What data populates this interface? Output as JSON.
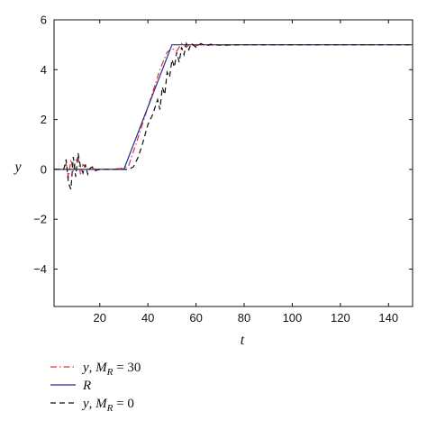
{
  "chart_data": {
    "type": "line",
    "title": "",
    "xlabel": "t",
    "ylabel": "y",
    "xlim": [
      1,
      150
    ],
    "ylim": [
      -5.5,
      6
    ],
    "xticks": [
      20,
      40,
      60,
      80,
      100,
      120,
      140
    ],
    "yticks": [
      -4,
      -2,
      0,
      2,
      4,
      6
    ],
    "xtick_labels": [
      "20",
      "40",
      "60",
      "80",
      "100",
      "120",
      "140"
    ],
    "ytick_labels": [
      "−4",
      "−2",
      "0",
      "2",
      "4",
      "6"
    ],
    "grid": false,
    "legend_position": "below",
    "series": [
      {
        "id": "ymr30",
        "legend_var": "y",
        "legend_sub_var": "M",
        "legend_sub_index": "R",
        "legend_eq": " = 30",
        "color": "#e0303a",
        "dash": "7,3,1.5,3",
        "x": [
          1,
          5,
          6,
          7,
          8,
          9,
          10,
          11,
          12,
          13,
          14,
          15,
          16,
          18,
          20,
          25,
          30,
          32,
          35,
          40,
          45,
          48,
          50,
          52,
          54,
          56,
          58,
          60,
          62,
          65,
          70,
          80,
          100,
          150
        ],
        "y": [
          0,
          0,
          0.25,
          -0.35,
          0.4,
          -0.1,
          0.35,
          0.5,
          -0.2,
          0.2,
          0.1,
          0,
          0.1,
          0,
          0,
          0,
          0.05,
          0.15,
          1,
          2.5,
          4,
          4.7,
          4.85,
          4.75,
          5.05,
          4.9,
          5.05,
          4.95,
          5.02,
          4.98,
          5,
          5,
          5,
          5
        ]
      },
      {
        "id": "R",
        "legend_var": "R",
        "legend_sub_var": "",
        "legend_sub_index": "",
        "legend_eq": "",
        "color": "#2a2a8f",
        "dash": "",
        "x": [
          1,
          30,
          50,
          150
        ],
        "y": [
          0,
          0,
          5,
          5
        ]
      },
      {
        "id": "ymr0",
        "legend_var": "y",
        "legend_sub_var": "M",
        "legend_sub_index": "R",
        "legend_eq": " = 0",
        "color": "#111111",
        "dash": "6,4",
        "x": [
          1,
          5,
          6,
          7,
          8,
          9,
          10,
          11,
          12,
          13,
          14,
          15,
          16,
          17,
          18,
          20,
          25,
          30,
          32,
          34,
          36,
          38,
          40,
          42,
          44,
          45,
          46,
          47,
          48,
          49,
          50,
          51,
          52,
          53,
          54,
          55,
          56,
          57,
          58,
          60,
          62,
          64,
          66,
          70,
          80,
          100,
          150
        ],
        "y": [
          0,
          0,
          0.4,
          -0.55,
          -0.8,
          0.5,
          -0.3,
          0.65,
          0.1,
          -0.15,
          0.2,
          -0.2,
          0.05,
          0.1,
          -0.05,
          0,
          0,
          0,
          0,
          0.1,
          0.5,
          1.1,
          1.8,
          2.2,
          2.8,
          2.4,
          3.3,
          3.0,
          3.9,
          3.7,
          4.4,
          4.1,
          4.7,
          4.3,
          4.9,
          4.6,
          5.05,
          4.8,
          5.05,
          4.9,
          5.05,
          4.95,
          5.02,
          4.98,
          5,
          5,
          5
        ]
      }
    ]
  }
}
